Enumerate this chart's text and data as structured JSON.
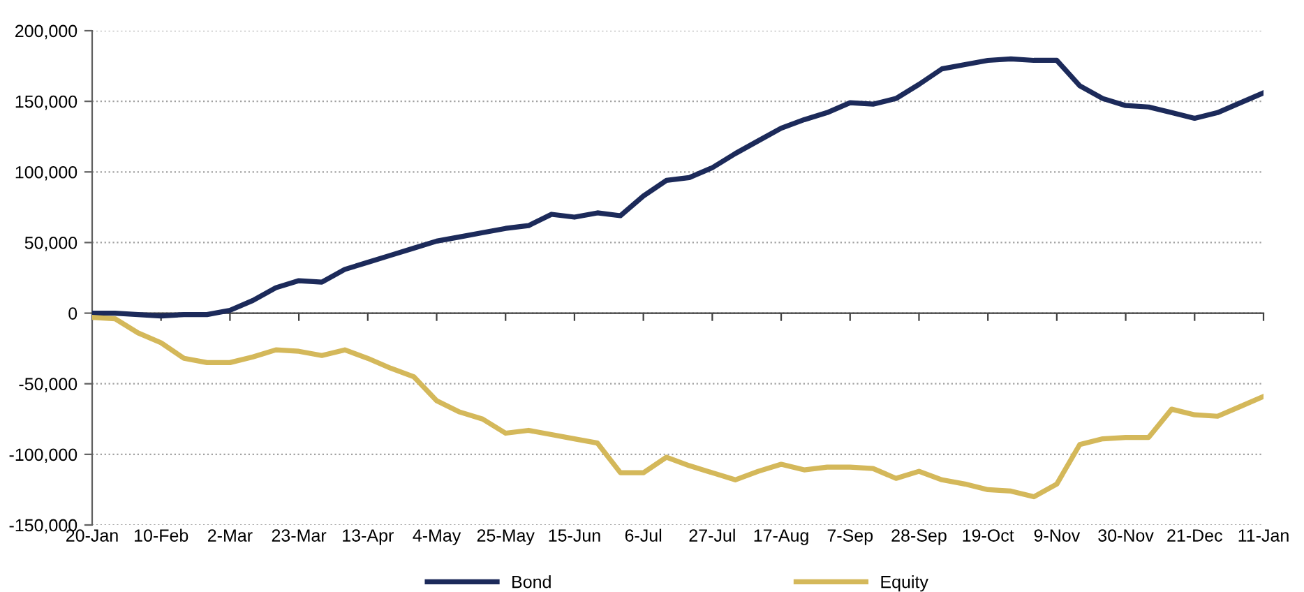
{
  "chart_data": {
    "type": "line",
    "categories": [
      "20-Jan",
      null,
      null,
      "10-Feb",
      null,
      null,
      "2-Mar",
      null,
      null,
      "23-Mar",
      null,
      null,
      "13-Apr",
      null,
      null,
      "4-May",
      null,
      null,
      "25-May",
      null,
      null,
      "15-Jun",
      null,
      null,
      "6-Jul",
      null,
      null,
      "27-Jul",
      null,
      null,
      "17-Aug",
      null,
      null,
      "7-Sep",
      null,
      null,
      "28-Sep",
      null,
      null,
      "19-Oct",
      null,
      null,
      "9-Nov",
      null,
      null,
      "30-Nov",
      null,
      null,
      "21-Dec",
      null,
      null,
      "11-Jan"
    ],
    "series": [
      {
        "name": "Bond",
        "color": "#1c2a5a",
        "values": [
          0,
          0,
          -1000,
          -2000,
          -1000,
          -1000,
          2000,
          9000,
          18000,
          23000,
          22000,
          31000,
          36000,
          41000,
          46000,
          51000,
          54000,
          57000,
          60000,
          62000,
          70000,
          68000,
          71000,
          69000,
          83000,
          94000,
          96000,
          103000,
          113000,
          122000,
          131000,
          137000,
          142000,
          149000,
          148000,
          152000,
          162000,
          173000,
          176000,
          179000,
          180000,
          179000,
          179000,
          161000,
          152000,
          147000,
          146000,
          142000,
          138000,
          142000,
          149000,
          156000
        ]
      },
      {
        "name": "Equity",
        "color": "#d4b85a",
        "values": [
          -3000,
          -4000,
          -14000,
          -21000,
          -32000,
          -35000,
          -35000,
          -31000,
          -26000,
          -27000,
          -30000,
          -26000,
          -32000,
          -39000,
          -45000,
          -62000,
          -70000,
          -75000,
          -85000,
          -83000,
          -86000,
          -89000,
          -92000,
          -113000,
          -113000,
          -102000,
          -108000,
          -113000,
          -118000,
          -112000,
          -107000,
          -111000,
          -109000,
          -109000,
          -110000,
          -117000,
          -112000,
          -118000,
          -121000,
          -125000,
          -126000,
          -130000,
          -121000,
          -93000,
          -89000,
          -88000,
          -88000,
          -68000,
          -72000,
          -73000,
          -66000,
          -59000
        ]
      }
    ],
    "ylim": [
      -150000,
      200000
    ],
    "yticks": [
      {
        "value": -150000,
        "label": "-150,000"
      },
      {
        "value": -100000,
        "label": "-100,000"
      },
      {
        "value": -50000,
        "label": "-50,000"
      },
      0,
      {
        "value": 50000,
        "label": "50,000"
      },
      {
        "value": 100000,
        "label": "100,000"
      },
      {
        "value": 150000,
        "label": "150,000"
      },
      {
        "value": 200000,
        "label": "200,000"
      }
    ],
    "grid": "y",
    "legend": "bottom",
    "line_style": "solid",
    "marker": "none"
  }
}
